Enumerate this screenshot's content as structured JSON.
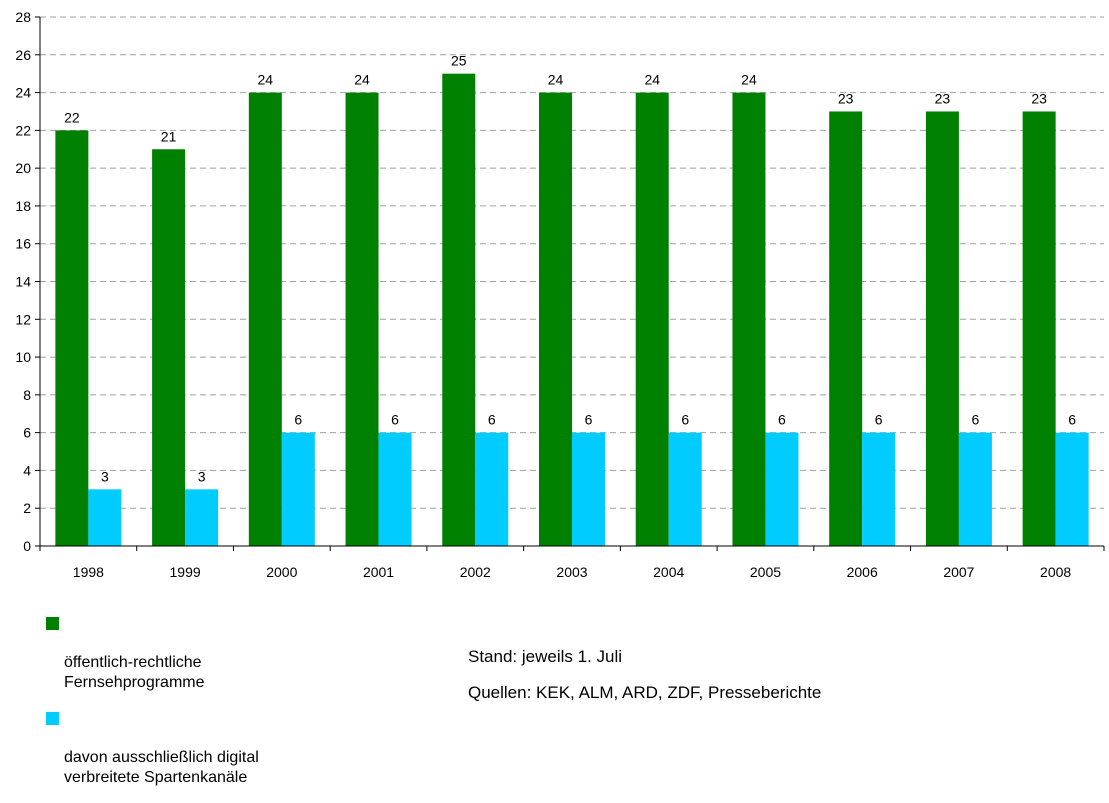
{
  "chart_data": {
    "type": "bar",
    "categories": [
      "1998",
      "1999",
      "2000",
      "2001",
      "2002",
      "2003",
      "2004",
      "2005",
      "2006",
      "2007",
      "2008"
    ],
    "series": [
      {
        "name": "öffentlich-rechtliche\nFernsehprogramme",
        "color": "#008000",
        "values": [
          22,
          21,
          24,
          24,
          25,
          24,
          24,
          24,
          23,
          23,
          23
        ]
      },
      {
        "name": "davon ausschließlich digital\nverbreitete Spartenkanäle",
        "color": "#00ccff",
        "values": [
          3,
          3,
          6,
          6,
          6,
          6,
          6,
          6,
          6,
          6,
          6
        ]
      }
    ],
    "ylim": [
      0,
      28
    ],
    "yticks": [
      0,
      2,
      4,
      6,
      8,
      10,
      12,
      14,
      16,
      18,
      20,
      22,
      24,
      26,
      28
    ],
    "grid": true,
    "legend_position": "bottom-left"
  },
  "notes": {
    "stand": "Stand: jeweils 1. Juli",
    "quellen": "Quellen: KEK, ALM, ARD, ZDF, Presseberichte"
  }
}
